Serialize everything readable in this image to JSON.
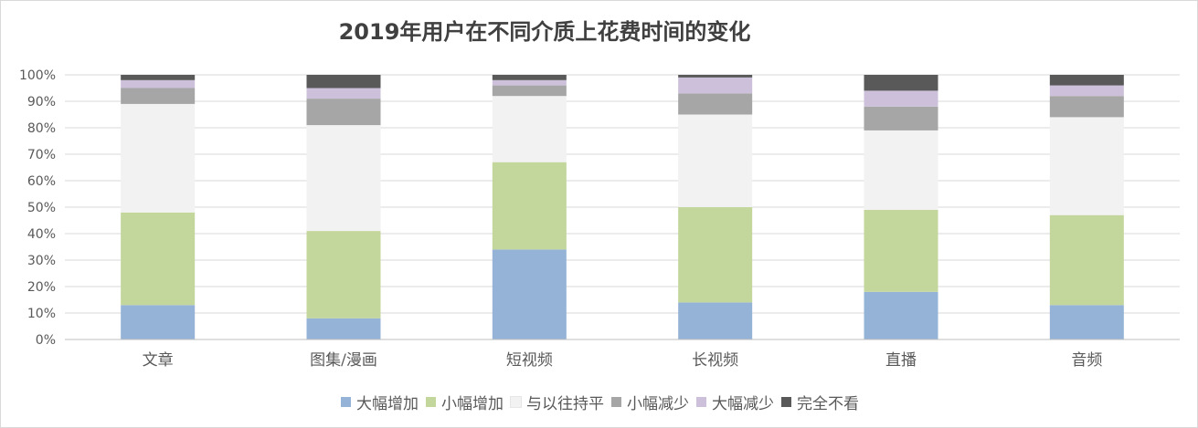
{
  "chart_data": {
    "type": "bar",
    "stacked": true,
    "title": "2019年用户在不同介质上花费时间的变化",
    "categories": [
      "文章",
      "图集/漫画",
      "短视频",
      "长视频",
      "直播",
      "音频"
    ],
    "ylim": [
      0,
      100
    ],
    "y_ticks": [
      "0%",
      "10%",
      "20%",
      "30%",
      "40%",
      "50%",
      "60%",
      "70%",
      "80%",
      "90%",
      "100%"
    ],
    "grid": true,
    "legend_position": "bottom",
    "series": [
      {
        "name": "大幅增加",
        "color": "#95b3d7",
        "values": [
          13,
          8,
          34,
          14,
          18,
          13
        ]
      },
      {
        "name": "小幅增加",
        "color": "#c3d69b",
        "values": [
          35,
          33,
          33,
          36,
          31,
          34
        ]
      },
      {
        "name": "与以往持平",
        "color": "#f2f2f2",
        "values": [
          41,
          40,
          25,
          35,
          30,
          37
        ]
      },
      {
        "name": "小幅减少",
        "color": "#a6a6a6",
        "values": [
          6,
          10,
          4,
          8,
          9,
          8
        ]
      },
      {
        "name": "大幅减少",
        "color": "#ccc0da",
        "values": [
          3,
          4,
          2,
          6,
          6,
          4
        ]
      },
      {
        "name": "完全不看",
        "color": "#595959",
        "values": [
          2,
          5,
          2,
          1,
          6,
          4
        ]
      }
    ]
  }
}
